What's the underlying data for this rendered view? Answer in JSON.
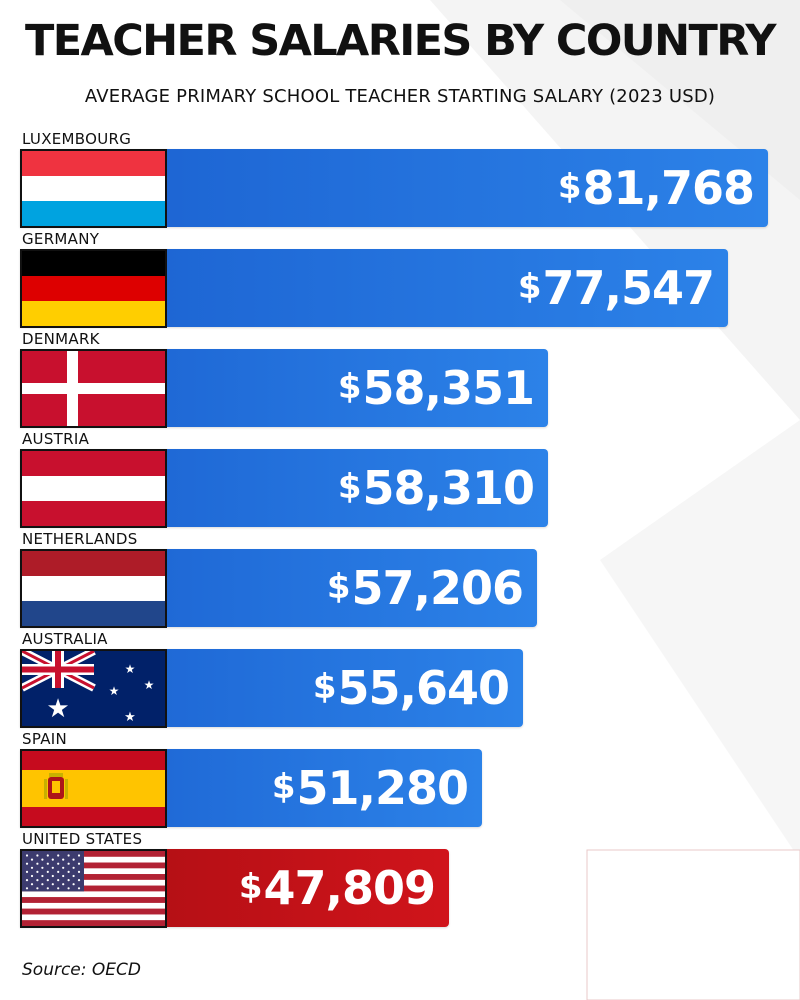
{
  "chart_data": {
    "type": "bar",
    "orientation": "horizontal",
    "title": "TEACHER SALARIES BY COUNTRY",
    "subtitle": "AVERAGE PRIMARY SCHOOL TEACHER STARTING SALARY (2023 USD)",
    "categories": [
      "LUXEMBOURG",
      "GERMANY",
      "DENMARK",
      "AUSTRIA",
      "NETHERLANDS",
      "AUSTRALIA",
      "SPAIN",
      "UNITED STATES"
    ],
    "values": [
      81768,
      77547,
      58351,
      58310,
      57206,
      55640,
      51280,
      47809
    ],
    "value_labels": [
      "81,768",
      "77,547",
      "58,351",
      "58,310",
      "57,206",
      "55,640",
      "51,280",
      "47,809"
    ],
    "currency_symbol": "$",
    "flags": [
      "luxembourg-flag",
      "germany-flag",
      "denmark-flag",
      "austria-flag",
      "netherlands-flag",
      "australia-flag",
      "spain-flag",
      "united-states-flag"
    ],
    "bar_colors": [
      "#1e6fd9",
      "#1e6fd9",
      "#1e6fd9",
      "#1e6fd9",
      "#1e6fd9",
      "#1e6fd9",
      "#1e6fd9",
      "#c8141b"
    ],
    "grid": false,
    "legend": "none",
    "source": "Source: OECD"
  }
}
